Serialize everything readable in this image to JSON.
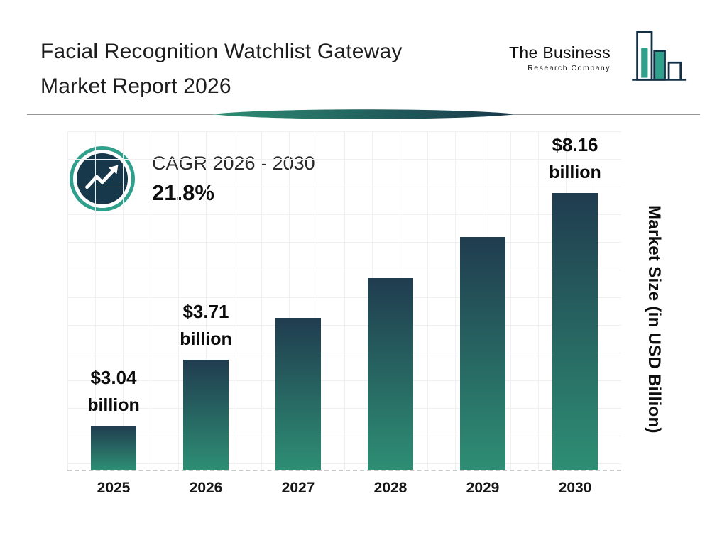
{
  "header": {
    "title_line1": "Facial Recognition Watchlist Gateway",
    "title_line2": "Market Report 2026",
    "logo": {
      "name_line1": "The Business",
      "name_line2": "Research Company"
    }
  },
  "cagr": {
    "label": "CAGR 2026 - 2030",
    "value": "21.8%"
  },
  "chart_data": {
    "type": "bar",
    "title": "Facial Recognition Watchlist Gateway Market Report 2026",
    "categories": [
      "2025",
      "2026",
      "2027",
      "2028",
      "2029",
      "2030"
    ],
    "values": [
      3.04,
      3.71,
      4.52,
      5.5,
      6.7,
      8.16
    ],
    "labeled_values": [
      {
        "category": "2025",
        "amount": "$3.04",
        "unit": "billion"
      },
      {
        "category": "2026",
        "amount": "$3.71",
        "unit": "billion"
      },
      {
        "category": "2030",
        "amount": "$8.16",
        "unit": "billion"
      }
    ],
    "xlabel": "",
    "ylabel": "Market Size (in USD Billion)",
    "ylim": [
      0,
      9
    ],
    "grid": true,
    "legend_position": "none",
    "annotations": [
      "CAGR 2026 - 2030: 21.8%"
    ],
    "colors": {
      "bar_top": "#203C4F",
      "bar_bottom": "#2E8E74",
      "accent_teal": "#2FA08C",
      "dark_navy": "#17374A"
    }
  }
}
